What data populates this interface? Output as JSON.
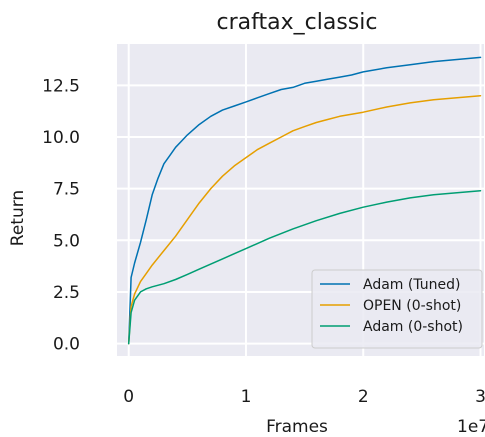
{
  "chart_data": {
    "type": "line",
    "title": "craftax_classic",
    "xlabel": "Frames",
    "ylabel": "Return",
    "x_scale_label": "1e7",
    "xlim": [
      -0.1,
      3.03
    ],
    "ylim": [
      -0.6,
      14.5
    ],
    "xticks": [
      0,
      1,
      2,
      3
    ],
    "xtick_labels": [
      "0",
      "1",
      "2",
      "3"
    ],
    "yticks": [
      0.0,
      2.5,
      5.0,
      7.5,
      10.0,
      12.5
    ],
    "ytick_labels": [
      "0.0",
      "2.5",
      "5.0",
      "7.5",
      "10.0",
      "12.5"
    ],
    "grid": true,
    "legend_position": "lower-right",
    "series": [
      {
        "name": "Adam (Tuned)",
        "color": "#0072B2",
        "x": [
          0,
          0.02,
          0.05,
          0.1,
          0.15,
          0.2,
          0.25,
          0.3,
          0.35,
          0.4,
          0.45,
          0.5,
          0.6,
          0.7,
          0.8,
          0.9,
          1.0,
          1.1,
          1.2,
          1.3,
          1.4,
          1.5,
          1.6,
          1.7,
          1.8,
          1.9,
          2.0,
          2.2,
          2.4,
          2.6,
          2.8,
          3.0
        ],
        "y": [
          0,
          3.2,
          3.9,
          4.9,
          6.0,
          7.2,
          8.0,
          8.7,
          9.1,
          9.5,
          9.8,
          10.1,
          10.6,
          11.0,
          11.3,
          11.5,
          11.7,
          11.9,
          12.1,
          12.3,
          12.4,
          12.6,
          12.7,
          12.8,
          12.9,
          13.0,
          13.15,
          13.35,
          13.5,
          13.65,
          13.75,
          13.85
        ]
      },
      {
        "name": "OPEN (0-shot)",
        "color": "#E69F00",
        "x": [
          0,
          0.02,
          0.05,
          0.1,
          0.15,
          0.2,
          0.3,
          0.4,
          0.5,
          0.6,
          0.7,
          0.8,
          0.9,
          1.0,
          1.1,
          1.2,
          1.3,
          1.4,
          1.5,
          1.6,
          1.7,
          1.8,
          1.9,
          2.0,
          2.2,
          2.4,
          2.6,
          2.8,
          3.0
        ],
        "y": [
          0,
          1.8,
          2.4,
          3.0,
          3.4,
          3.8,
          4.5,
          5.2,
          6.0,
          6.8,
          7.5,
          8.1,
          8.6,
          9.0,
          9.4,
          9.7,
          10.0,
          10.3,
          10.5,
          10.7,
          10.85,
          11.0,
          11.1,
          11.2,
          11.45,
          11.65,
          11.8,
          11.9,
          12.0
        ]
      },
      {
        "name": "Adam (0-shot)",
        "color": "#009E73",
        "x": [
          0,
          0.02,
          0.05,
          0.1,
          0.15,
          0.2,
          0.3,
          0.4,
          0.5,
          0.6,
          0.7,
          0.8,
          0.9,
          1.0,
          1.2,
          1.4,
          1.6,
          1.8,
          2.0,
          2.2,
          2.4,
          2.6,
          2.8,
          3.0
        ],
        "y": [
          0,
          1.5,
          2.1,
          2.5,
          2.65,
          2.75,
          2.9,
          3.1,
          3.35,
          3.6,
          3.85,
          4.1,
          4.35,
          4.6,
          5.1,
          5.55,
          5.95,
          6.3,
          6.6,
          6.85,
          7.05,
          7.2,
          7.3,
          7.4
        ]
      }
    ]
  }
}
